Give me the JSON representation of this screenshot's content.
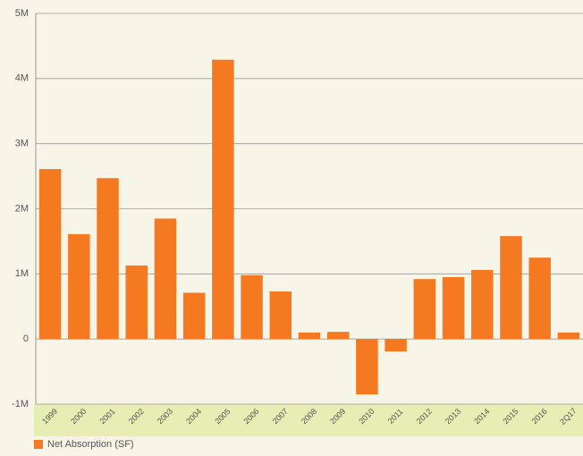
{
  "chart_data": {
    "type": "bar",
    "categories": [
      "1999",
      "2000",
      "2001",
      "2002",
      "2003",
      "2004",
      "2005",
      "2006",
      "2007",
      "2008",
      "2009",
      "2010",
      "2011",
      "2012",
      "2013",
      "2014",
      "2015",
      "2016",
      "2Q17"
    ],
    "series": [
      {
        "name": "Net Absorption (SF)",
        "color": "#f47920",
        "values": [
          2610000,
          1610000,
          2470000,
          1130000,
          1850000,
          710000,
          4290000,
          980000,
          730000,
          100000,
          110000,
          -850000,
          -190000,
          920000,
          950000,
          1060000,
          1580000,
          1250000,
          100000
        ]
      }
    ],
    "ylim": [
      -1000000,
      5000000
    ],
    "yticks": [
      {
        "value": -1000000,
        "label": "-1M"
      },
      0,
      {
        "value": 1000000,
        "label": "1M"
      },
      {
        "value": 2000000,
        "label": "2M"
      },
      {
        "value": 3000000,
        "label": "3M"
      },
      {
        "value": 4000000,
        "label": "4M"
      },
      {
        "value": 5000000,
        "label": "5M"
      }
    ],
    "grid": true,
    "highlight_category_index": 18,
    "highlight_color": "#f47920",
    "legend": "bottom-left"
  }
}
